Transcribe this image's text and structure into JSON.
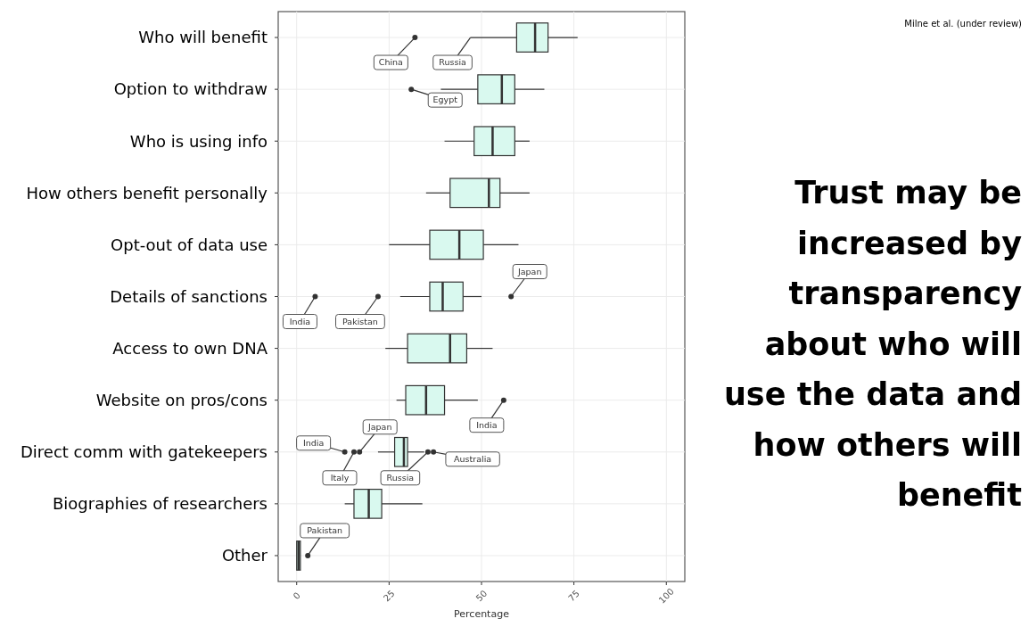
{
  "chart_data": {
    "type": "box",
    "title": "Trust may be increased by transparency about who will use the data and how others will benefit",
    "xlabel": "Percentage",
    "orientation": "horizontal",
    "categories": [
      "Who will benefit",
      "Option to withdraw",
      "Who is using info",
      "How others benefit personally",
      "Opt-out of data use",
      "Details of sanctions",
      "Access to own DNA",
      "Website on pros/cons",
      "Direct comm with gatekeepers",
      "Biographies of researchers",
      "Other"
    ],
    "color": "#d9f9ef",
    "boxes": [
      {
        "low": 47,
        "q1": 59.5,
        "median": 64.5,
        "q3": 68,
        "high": 76,
        "outliers": [
          32
        ]
      },
      {
        "low": 39,
        "q1": 49,
        "median": 55.5,
        "q3": 59,
        "high": 67,
        "outliers": [
          31
        ]
      },
      {
        "low": 40,
        "q1": 48,
        "median": 53,
        "q3": 59,
        "high": 63
      },
      {
        "low": 35,
        "q1": 41.5,
        "median": 52,
        "q3": 55,
        "high": 63
      },
      {
        "low": 25,
        "q1": 36,
        "median": 44,
        "q3": 50.5,
        "high": 60
      },
      {
        "low": 28,
        "q1": 36,
        "median": 39.5,
        "q3": 45,
        "high": 50,
        "outliers": [
          5,
          22,
          58
        ]
      },
      {
        "low": 24,
        "q1": 30,
        "median": 41.5,
        "q3": 46,
        "high": 53
      },
      {
        "low": 27,
        "q1": 29.5,
        "median": 35,
        "q3": 40,
        "high": 49,
        "outliers": [
          56
        ]
      },
      {
        "low": 22,
        "q1": 26.5,
        "median": 29,
        "q3": 30,
        "high": 34.5,
        "outliers": [
          13,
          15.5,
          17,
          35.5,
          37
        ]
      },
      {
        "low": 13,
        "q1": 15.5,
        "median": 19.5,
        "q3": 23,
        "high": 34
      },
      {
        "low": 0,
        "q1": 0,
        "median": 0.5,
        "q3": 1,
        "high": 1,
        "outliers": [
          3
        ]
      }
    ],
    "xlim": [
      -5,
      105
    ],
    "xticks": [
      0,
      25,
      50,
      75,
      100
    ],
    "grid": true,
    "annotations": [
      "Milne et al. (under review)",
      "China",
      {
        "text": "Russia",
        "x": 47,
        "y": "Who will benefit"
      },
      "Egypt",
      "India",
      "Pakistan",
      "Japan",
      "India",
      "India",
      "Italy",
      "Japan",
      "Russia",
      "Australia",
      "Pakistan"
    ]
  }
}
